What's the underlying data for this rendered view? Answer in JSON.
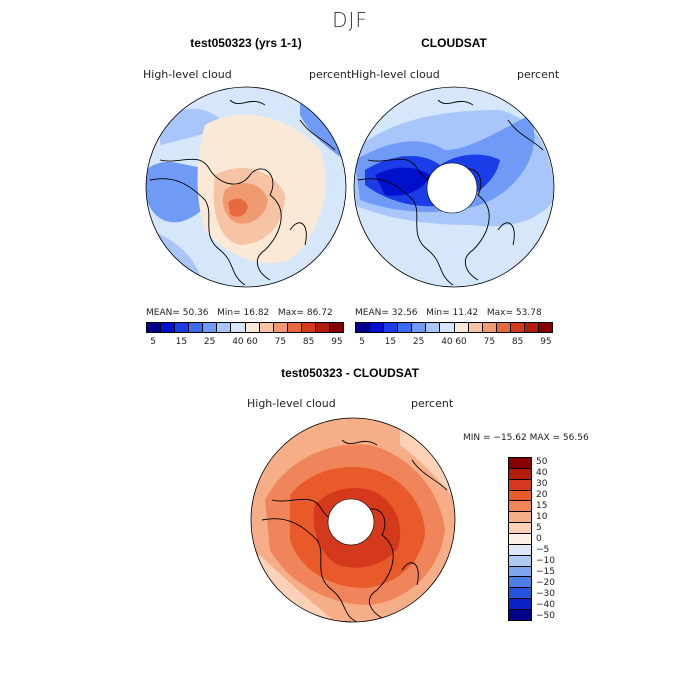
{
  "figure": {
    "season": "DJF",
    "panel1": {
      "title": "test050323 (yrs 1-1)",
      "field": "High-level cloud",
      "units": "percent",
      "stats": {
        "mean_label": "MEAN=",
        "mean": "50.36",
        "min_label": "Min=",
        "min": "16.82",
        "max_label": "Max=",
        "max": "86.72"
      }
    },
    "panel2": {
      "title": "CLOUDSAT",
      "field": "High-level cloud",
      "units": "percent",
      "stats": {
        "mean_label": "MEAN=",
        "mean": "32.56",
        "min_label": "Min=",
        "min": "11.42",
        "max_label": "Max=",
        "max": "53.78"
      }
    },
    "panel3": {
      "title": "test050323 - CLOUDSAT",
      "field": "High-level cloud",
      "units": "percent",
      "minmax": "MIN = −15.62  MAX =  56.56"
    }
  },
  "colorbar_top": {
    "colors": [
      "#00008b",
      "#0010cc",
      "#1a3de8",
      "#3b6cf0",
      "#6f9af5",
      "#a8c6fa",
      "#d6e6fb",
      "#fbe9d8",
      "#f6c4a5",
      "#f09a72",
      "#e66a3e",
      "#d4391b",
      "#b01d0b",
      "#870000"
    ],
    "labels": [
      "5",
      "15",
      "25",
      "40",
      "60",
      "75",
      "85",
      "95"
    ]
  },
  "colorbar_diff": {
    "colors": [
      "#870000",
      "#b01d0b",
      "#d4391b",
      "#e85a2a",
      "#f0845a",
      "#f6ae88",
      "#fbd2b8",
      "#fdf0e4",
      "#dde9f7",
      "#aec9f2",
      "#7fa6ec",
      "#4f7ee6",
      "#2653de",
      "#0a22c4",
      "#00008b"
    ],
    "labels": [
      "50",
      "40",
      "30",
      "20",
      "15",
      "10",
      "5",
      "0",
      "−5",
      "−10",
      "−15",
      "−20",
      "−30",
      "−40",
      "−50"
    ]
  },
  "map_colors": {
    "model_bg": "#d6e6fb",
    "model_light_blue": "#a8c6fa",
    "model_blue": "#6f9af5",
    "model_warm": "#fbe9d8",
    "model_orange": "#f6c4a5",
    "model_red": "#f09a72",
    "model_dark_red": "#e66a3e",
    "obs_bg": "#d6e6fb",
    "obs_mid": "#a8c6fa",
    "obs_blue": "#6f9af5",
    "obs_dark": "#1a3de8",
    "obs_darker": "#0010cc",
    "diff_bg": "#f6ae88",
    "diff_orange": "#f0845a",
    "diff_red": "#e85a2a",
    "diff_darkred": "#d4391b",
    "diff_light": "#fbd2b8",
    "coast": "#000000"
  }
}
